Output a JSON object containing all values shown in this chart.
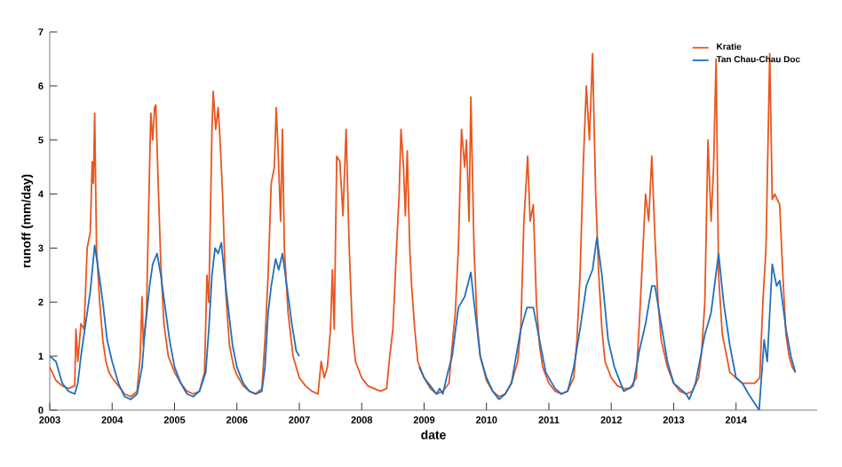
{
  "chart_data": {
    "type": "line",
    "xlabel": "date",
    "ylabel": "runoff (mm/day)",
    "xlim": [
      2003,
      2015.3
    ],
    "ylim": [
      0,
      7
    ],
    "xticks": [
      2003,
      2004,
      2005,
      2006,
      2007,
      2008,
      2009,
      2010,
      2011,
      2012,
      2013,
      2014
    ],
    "yticks": [
      0,
      1,
      2,
      3,
      4,
      5,
      6,
      7
    ],
    "grid": false,
    "legend": "top right",
    "line_style": "solid",
    "series": [
      {
        "name": "Kratie",
        "color": "#e8561e",
        "x": [
          2003.0,
          2003.1,
          2003.2,
          2003.3,
          2003.4,
          2003.42,
          2003.45,
          2003.5,
          2003.55,
          2003.6,
          2003.65,
          2003.68,
          2003.7,
          2003.72,
          2003.75,
          2003.8,
          2003.85,
          2003.9,
          2003.95,
          2004.0,
          2004.1,
          2004.2,
          2004.3,
          2004.4,
          2004.45,
          2004.48,
          2004.5,
          2004.55,
          2004.6,
          2004.62,
          2004.65,
          2004.68,
          2004.7,
          2004.73,
          2004.78,
          2004.83,
          2004.9,
          2005.0,
          2005.1,
          2005.2,
          2005.3,
          2005.4,
          2005.48,
          2005.52,
          2005.55,
          2005.6,
          2005.62,
          2005.66,
          2005.7,
          2005.73,
          2005.77,
          2005.82,
          2005.88,
          2005.95,
          2006.0,
          2006.1,
          2006.2,
          2006.3,
          2006.4,
          2006.45,
          2006.5,
          2006.55,
          2006.6,
          2006.63,
          2006.66,
          2006.7,
          2006.73,
          2006.76,
          2006.82,
          2006.9,
          2007.0,
          2007.1,
          2007.2,
          2007.3,
          2007.35,
          2007.4,
          2007.45,
          2007.5,
          2007.53,
          2007.56,
          2007.6,
          2007.65,
          2007.7,
          2007.75,
          2007.8,
          2007.85,
          2007.9,
          2008.0,
          2008.1,
          2008.2,
          2008.3,
          2008.4,
          2008.45,
          2008.5,
          2008.55,
          2008.6,
          2008.63,
          2008.67,
          2008.7,
          2008.73,
          2008.77,
          2008.8,
          2008.85,
          2008.9,
          2009.0,
          2009.1,
          2009.2,
          2009.3,
          2009.4,
          2009.45,
          2009.5,
          2009.55,
          2009.6,
          2009.65,
          2009.68,
          2009.72,
          2009.75,
          2009.8,
          2009.85,
          2009.9,
          2010.0,
          2010.1,
          2010.2,
          2010.3,
          2010.4,
          2010.5,
          2010.55,
          2010.6,
          2010.66,
          2010.7,
          2010.75,
          2010.8,
          2010.85,
          2010.9,
          2011.0,
          2011.1,
          2011.2,
          2011.3,
          2011.4,
          2011.45,
          2011.5,
          2011.55,
          2011.6,
          2011.65,
          2011.7,
          2011.75,
          2011.8,
          2011.85,
          2011.9,
          2012.0,
          2012.1,
          2012.2,
          2012.3,
          2012.4,
          2012.45,
          2012.5,
          2012.55,
          2012.6,
          2012.65,
          2012.7,
          2012.75,
          2012.8,
          2012.9,
          2013.0,
          2013.1,
          2013.2,
          2013.3,
          2013.4,
          2013.45,
          2013.5,
          2013.55,
          2013.6,
          2013.64,
          2013.68,
          2013.72,
          2013.78,
          2013.85,
          2013.9,
          2014.0,
          2014.1,
          2014.2,
          2014.3,
          2014.38,
          2014.43,
          2014.48,
          2014.54,
          2014.58,
          2014.62,
          2014.7,
          2014.75,
          2014.8,
          2014.85,
          2014.9,
          2014.95
        ],
        "values": [
          0.8,
          0.55,
          0.45,
          0.4,
          0.45,
          1.5,
          0.9,
          1.6,
          1.5,
          3.0,
          3.3,
          4.6,
          4.2,
          5.5,
          3.0,
          2.0,
          1.3,
          0.9,
          0.7,
          0.6,
          0.45,
          0.3,
          0.25,
          0.35,
          1.0,
          2.1,
          1.2,
          1.8,
          4.5,
          5.5,
          5.0,
          5.6,
          5.65,
          4.5,
          2.7,
          1.6,
          1.0,
          0.7,
          0.5,
          0.35,
          0.3,
          0.35,
          0.7,
          2.5,
          2.0,
          5.2,
          5.9,
          5.2,
          5.6,
          5.0,
          4.0,
          2.2,
          1.2,
          0.8,
          0.65,
          0.45,
          0.35,
          0.3,
          0.4,
          1.3,
          2.5,
          4.2,
          4.5,
          5.6,
          4.8,
          3.5,
          5.2,
          3.0,
          1.8,
          1.0,
          0.6,
          0.45,
          0.35,
          0.3,
          0.9,
          0.6,
          0.8,
          1.5,
          2.6,
          1.5,
          4.7,
          4.6,
          3.6,
          5.2,
          3.0,
          1.5,
          0.9,
          0.6,
          0.45,
          0.4,
          0.35,
          0.4,
          1.0,
          1.5,
          2.8,
          4.0,
          5.2,
          4.5,
          3.6,
          4.8,
          3.0,
          2.3,
          1.5,
          0.9,
          0.6,
          0.4,
          0.3,
          0.35,
          0.5,
          1.2,
          1.8,
          3.0,
          5.2,
          4.5,
          5.0,
          3.5,
          5.8,
          3.0,
          1.6,
          1.0,
          0.55,
          0.35,
          0.25,
          0.3,
          0.5,
          0.9,
          1.5,
          3.5,
          4.7,
          3.5,
          3.8,
          2.0,
          1.2,
          0.8,
          0.5,
          0.35,
          0.3,
          0.35,
          0.6,
          1.3,
          2.5,
          4.5,
          6.0,
          5.0,
          6.6,
          4.0,
          2.5,
          1.5,
          0.9,
          0.6,
          0.45,
          0.4,
          0.4,
          0.6,
          1.6,
          2.8,
          4.0,
          3.5,
          4.7,
          3.2,
          2.0,
          1.3,
          0.8,
          0.5,
          0.35,
          0.3,
          0.35,
          0.6,
          1.1,
          2.0,
          5.0,
          3.5,
          4.5,
          6.5,
          2.5,
          1.4,
          1.0,
          0.7,
          0.6,
          0.5,
          0.5,
          0.5,
          0.6,
          2.0,
          3.0,
          6.6,
          3.9,
          4.0,
          3.8,
          2.5,
          1.4,
          1.0,
          0.8,
          0.7
        ]
      },
      {
        "name": "Tan Chau-Chau Doc",
        "color": "#1f6fc0",
        "x": [
          2003.0,
          2003.1,
          2003.2,
          2003.3,
          2003.4,
          2003.45,
          2003.5,
          2003.6,
          2003.65,
          2003.72,
          2003.78,
          2003.85,
          2003.92,
          2004.0,
          2004.1,
          2004.2,
          2004.3,
          2004.4,
          2004.48,
          2004.52,
          2004.6,
          2004.65,
          2004.72,
          2004.78,
          2004.85,
          2004.92,
          2005.0,
          2005.1,
          2005.2,
          2005.3,
          2005.4,
          2005.5,
          2005.55,
          2005.6,
          2005.65,
          2005.7,
          2005.75,
          2005.8,
          2005.87,
          2005.93,
          2006.0,
          2006.1,
          2006.2,
          2006.3,
          2006.4,
          2006.45,
          2006.5,
          2006.55,
          2006.62,
          2006.67,
          2006.73,
          2006.8,
          2006.88,
          2006.95,
          2007.0,
          2008.0,
          2008.92,
          2009.0,
          2009.1,
          2009.2,
          2009.25,
          2009.3,
          2009.38,
          2009.45,
          2009.55,
          2009.65,
          2009.75,
          2009.8,
          2009.9,
          2010.0,
          2010.1,
          2010.2,
          2010.3,
          2010.4,
          2010.55,
          2010.65,
          2010.75,
          2010.85,
          2010.95,
          2011.1,
          2011.2,
          2011.3,
          2011.4,
          2011.5,
          2011.6,
          2011.7,
          2011.77,
          2011.85,
          2011.95,
          2012.05,
          2012.15,
          2012.2,
          2012.35,
          2012.45,
          2012.55,
          2012.65,
          2012.7,
          2012.8,
          2012.9,
          2013.0,
          2013.1,
          2013.2,
          2013.25,
          2013.35,
          2013.5,
          2013.6,
          2013.72,
          2013.8,
          2013.9,
          2014.0,
          2014.1,
          2014.2,
          2014.37,
          2014.45,
          2014.5,
          2014.58,
          2014.65,
          2014.7,
          2014.8,
          2014.88,
          2014.95
        ],
        "values": [
          1.0,
          0.9,
          0.5,
          0.35,
          0.3,
          0.5,
          1.0,
          1.8,
          2.2,
          3.05,
          2.6,
          2.0,
          1.3,
          0.9,
          0.5,
          0.25,
          0.2,
          0.3,
          0.8,
          1.4,
          2.3,
          2.7,
          2.9,
          2.5,
          1.9,
          1.3,
          0.8,
          0.5,
          0.3,
          0.25,
          0.35,
          0.7,
          1.5,
          2.5,
          3.0,
          2.9,
          3.1,
          2.5,
          1.8,
          1.2,
          0.8,
          0.5,
          0.35,
          0.3,
          0.35,
          0.8,
          1.8,
          2.3,
          2.8,
          2.6,
          2.9,
          2.3,
          1.6,
          1.1,
          1.0,
          null,
          0.8,
          0.6,
          0.45,
          0.3,
          0.4,
          0.3,
          0.7,
          1.0,
          1.9,
          2.1,
          2.55,
          2.0,
          1.0,
          0.6,
          0.35,
          0.2,
          0.3,
          0.5,
          1.5,
          1.9,
          1.9,
          1.3,
          0.7,
          0.4,
          0.3,
          0.35,
          0.8,
          1.5,
          2.3,
          2.6,
          3.2,
          2.5,
          1.3,
          0.8,
          0.5,
          0.35,
          0.45,
          1.1,
          1.6,
          2.3,
          2.3,
          1.6,
          0.9,
          0.5,
          0.4,
          0.3,
          0.2,
          0.5,
          1.4,
          1.8,
          2.9,
          2.0,
          1.2,
          0.6,
          0.5,
          0.3,
          0.0,
          1.3,
          0.9,
          2.7,
          2.3,
          2.4,
          1.5,
          1.0,
          0.7
        ]
      }
    ]
  }
}
